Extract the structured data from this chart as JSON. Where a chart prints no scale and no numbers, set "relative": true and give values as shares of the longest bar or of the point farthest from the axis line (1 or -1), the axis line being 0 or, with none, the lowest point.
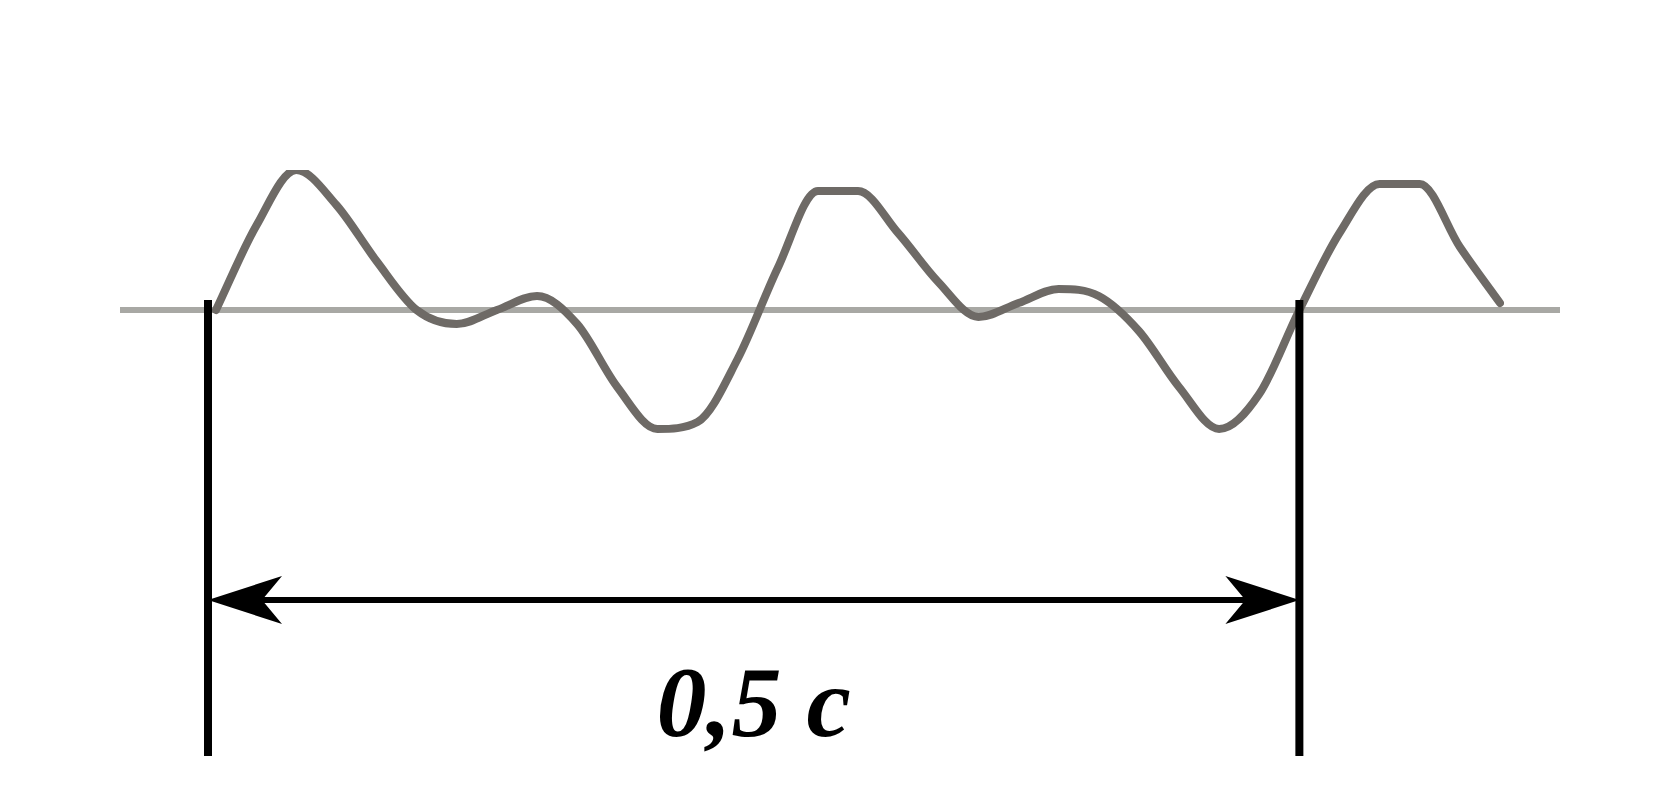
{
  "chart_data": {
    "type": "line",
    "relative": true,
    "categories": [
      null,
      null,
      null,
      null,
      null,
      null,
      null,
      null,
      null,
      null,
      null,
      null,
      null,
      null,
      null,
      null,
      null,
      null,
      null,
      null,
      null,
      null,
      null,
      null,
      null,
      null,
      null,
      null,
      null,
      null,
      null,
      null,
      null
    ],
    "series": [
      {
        "color": "#6e6a66",
        "values": [
          0,
          0.6,
          1,
          0.75,
          0.35,
          0,
          -0.1,
          0,
          0.1,
          -0.1,
          -0.55,
          -0.85,
          -0.8,
          -0.35,
          0.3,
          0.85,
          0.85,
          0.55,
          0.2,
          -0.05,
          0.05,
          0.15,
          0.1,
          -0.15,
          -0.55,
          -0.85,
          -0.6,
          0,
          0.55,
          0.9,
          0.9,
          0.45,
          0.05
        ]
      }
    ],
    "annotations": [
      "0,5 с"
    ],
    "legend": false,
    "marker": "none",
    "line_style": "solid",
    "tick_labels": false
  }
}
